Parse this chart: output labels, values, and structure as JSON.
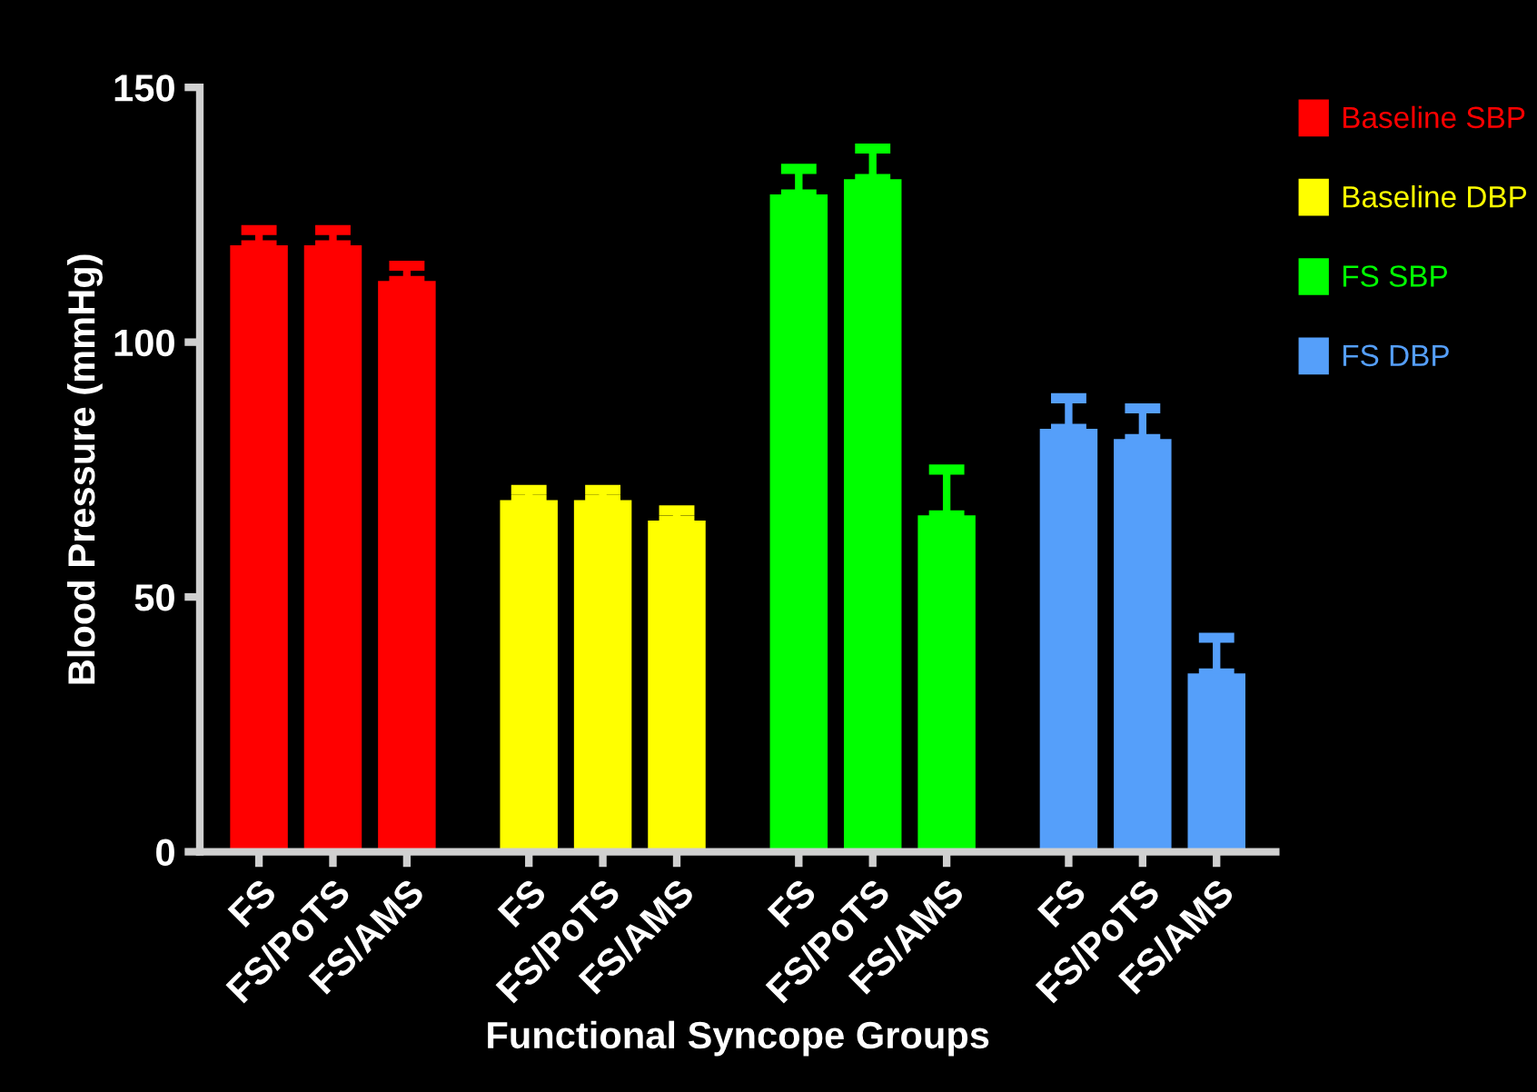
{
  "chart_data": {
    "type": "bar",
    "xlabel": "Functional Syncope Groups",
    "ylabel": "Blood Pressure (mmHg)",
    "categories": [
      "FS",
      "FS/PoTS",
      "FS/AMS",
      "FS",
      "FS/PoTS",
      "FS/AMS",
      "FS",
      "FS/PoTS",
      "FS/AMS",
      "FS",
      "FS/PoTS",
      "FS/AMS"
    ],
    "series": [
      {
        "name": "Baseline SBP",
        "color": "#ff0000",
        "values": [
          119,
          119,
          112,
          null,
          null,
          null,
          null,
          null,
          null,
          null,
          null,
          null
        ],
        "errors": [
          [
            119,
            122
          ],
          [
            119,
            122
          ],
          [
            112,
            115
          ],
          null,
          null,
          null,
          null,
          null,
          null,
          null,
          null,
          null
        ]
      },
      {
        "name": "Baseline DBP",
        "color": "#ffff00",
        "values": [
          null,
          null,
          null,
          69,
          69,
          65,
          null,
          null,
          null,
          null,
          null,
          null
        ],
        "errors": [
          null,
          null,
          null,
          [
            69,
            71
          ],
          [
            69,
            71
          ],
          [
            65,
            67
          ],
          null,
          null,
          null,
          null,
          null,
          null
        ]
      },
      {
        "name": "FS SBP",
        "color": "#00ff00",
        "values": [
          null,
          null,
          null,
          null,
          null,
          null,
          129,
          132,
          66,
          null,
          null,
          null
        ],
        "errors": [
          null,
          null,
          null,
          null,
          null,
          null,
          [
            129,
            134
          ],
          [
            132,
            138
          ],
          [
            66,
            75
          ],
          null,
          null,
          null
        ]
      },
      {
        "name": "FS DBP",
        "color": "#559ffa",
        "values": [
          null,
          null,
          null,
          null,
          null,
          null,
          null,
          null,
          null,
          83,
          81,
          35
        ],
        "errors": [
          null,
          null,
          null,
          null,
          null,
          null,
          null,
          null,
          null,
          [
            83,
            89
          ],
          [
            81,
            87
          ],
          [
            35,
            42
          ]
        ]
      }
    ],
    "ylim": [
      0,
      150
    ],
    "yticks": [
      0,
      50,
      100,
      150
    ],
    "grid": false,
    "legend": "top right"
  }
}
